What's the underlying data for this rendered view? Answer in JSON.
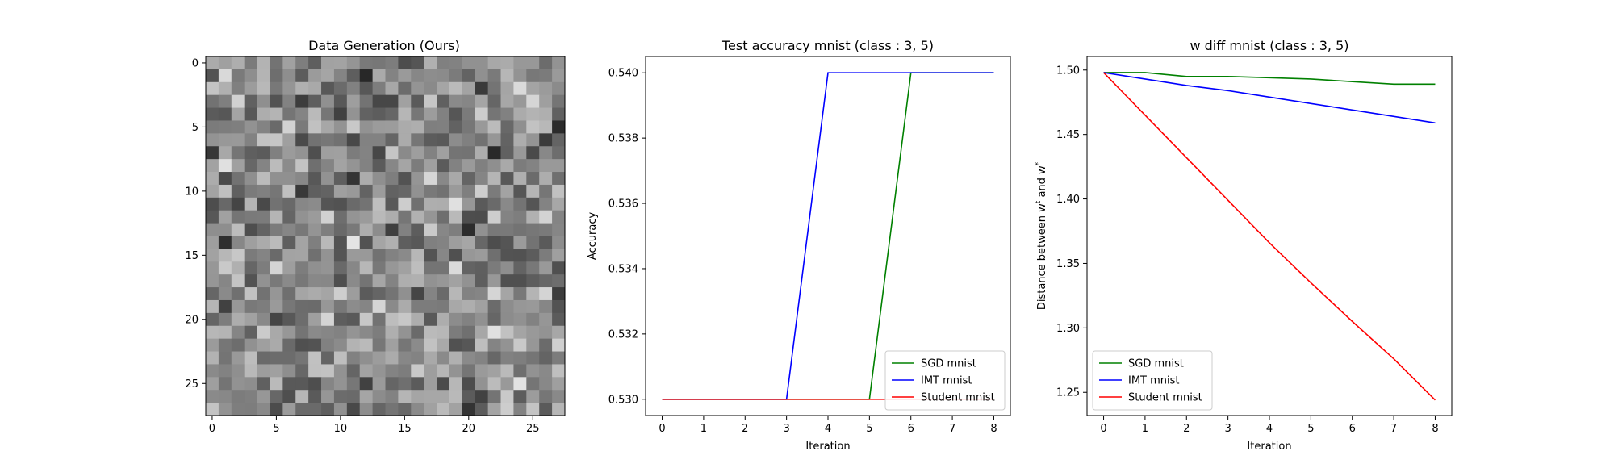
{
  "chart_data": [
    {
      "type": "heatmap",
      "title": "Data Generation (Ours)",
      "colormap": "gray",
      "rows": 28,
      "cols": 28,
      "xticks": [
        0,
        5,
        10,
        15,
        20,
        25
      ],
      "yticks": [
        0,
        5,
        10,
        15,
        20,
        25
      ],
      "pattern": "random-noise"
    },
    {
      "type": "line",
      "title": "Test accuracy mnist (class : 3, 5)",
      "xlabel": "Iteration",
      "ylabel": "Accuracy",
      "x": [
        0,
        1,
        2,
        3,
        4,
        5,
        6,
        7,
        8
      ],
      "xlim": [
        -0.4,
        8.4
      ],
      "ylim": [
        0.5295,
        0.5405
      ],
      "xticks": [
        0,
        1,
        2,
        3,
        4,
        5,
        6,
        7,
        8
      ],
      "yticks": [
        0.53,
        0.532,
        0.534,
        0.536,
        0.538,
        0.54
      ],
      "ytick_decimals": 3,
      "legend": "lower-right",
      "series": [
        {
          "name": "SGD mnist",
          "color": "#008000",
          "values": [
            0.53,
            0.53,
            0.53,
            0.53,
            0.53,
            0.53,
            0.54,
            0.54,
            0.54
          ]
        },
        {
          "name": "IMT mnist",
          "color": "#0000ff",
          "values": [
            0.53,
            0.53,
            0.53,
            0.53,
            0.54,
            0.54,
            0.54,
            0.54,
            0.54
          ]
        },
        {
          "name": "Student mnist",
          "color": "#ff0000",
          "values": [
            0.53,
            0.53,
            0.53,
            0.53,
            0.53,
            0.53,
            0.53,
            0.53,
            0.53
          ]
        }
      ]
    },
    {
      "type": "line",
      "title": "w diff mnist (class : 3, 5)",
      "xlabel": "Iteration",
      "ylabel": "Distance between w",
      "ylabel_sup1": "t",
      "ylabel_mid": " and w",
      "ylabel_sup2": "*",
      "x": [
        0,
        1,
        2,
        3,
        4,
        5,
        6,
        7,
        8
      ],
      "xlim": [
        -0.4,
        8.4
      ],
      "ylim": [
        1.232,
        1.5105
      ],
      "xticks": [
        0,
        1,
        2,
        3,
        4,
        5,
        6,
        7,
        8
      ],
      "yticks": [
        1.25,
        1.3,
        1.35,
        1.4,
        1.45,
        1.5
      ],
      "ytick_decimals": 2,
      "legend": "lower-left",
      "series": [
        {
          "name": "SGD mnist",
          "color": "#008000",
          "values": [
            1.498,
            1.498,
            1.495,
            1.495,
            1.494,
            1.493,
            1.491,
            1.489,
            1.489
          ]
        },
        {
          "name": "IMT mnist",
          "color": "#0000ff",
          "values": [
            1.498,
            1.493,
            1.488,
            1.484,
            1.479,
            1.474,
            1.469,
            1.464,
            1.459
          ]
        },
        {
          "name": "Student mnist",
          "color": "#ff0000",
          "values": [
            1.498,
            1.465,
            1.432,
            1.399,
            1.366,
            1.335,
            1.305,
            1.276,
            1.244
          ]
        }
      ]
    }
  ]
}
